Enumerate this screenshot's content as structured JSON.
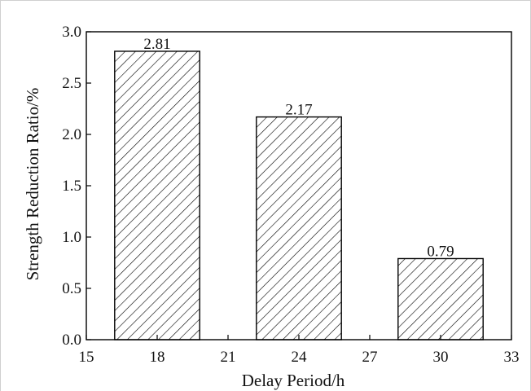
{
  "chart_data": {
    "type": "bar",
    "x": [
      18,
      24,
      30
    ],
    "values": [
      2.81,
      2.17,
      0.79
    ],
    "data_labels": [
      "2.81",
      "2.17",
      "0.79"
    ],
    "bar_width": 3.6,
    "xlabel": "Delay Period/h",
    "ylabel": "Strength Reduction Ratio/%",
    "xlim": [
      15,
      33
    ],
    "ylim": [
      0.0,
      3.0
    ],
    "xticks": [
      15,
      18,
      21,
      24,
      27,
      30,
      33
    ],
    "xtick_labels": [
      "15",
      "18",
      "21",
      "24",
      "27",
      "30",
      "33"
    ],
    "yticks": [
      0.0,
      0.5,
      1.0,
      1.5,
      2.0,
      2.5,
      3.0
    ],
    "ytick_labels": [
      "0.0",
      "0.5",
      "1.0",
      "1.5",
      "2.0",
      "2.5",
      "3.0"
    ],
    "bar_fill": "hatched",
    "bar_color": "#000000",
    "grid": false,
    "legend": "none"
  }
}
